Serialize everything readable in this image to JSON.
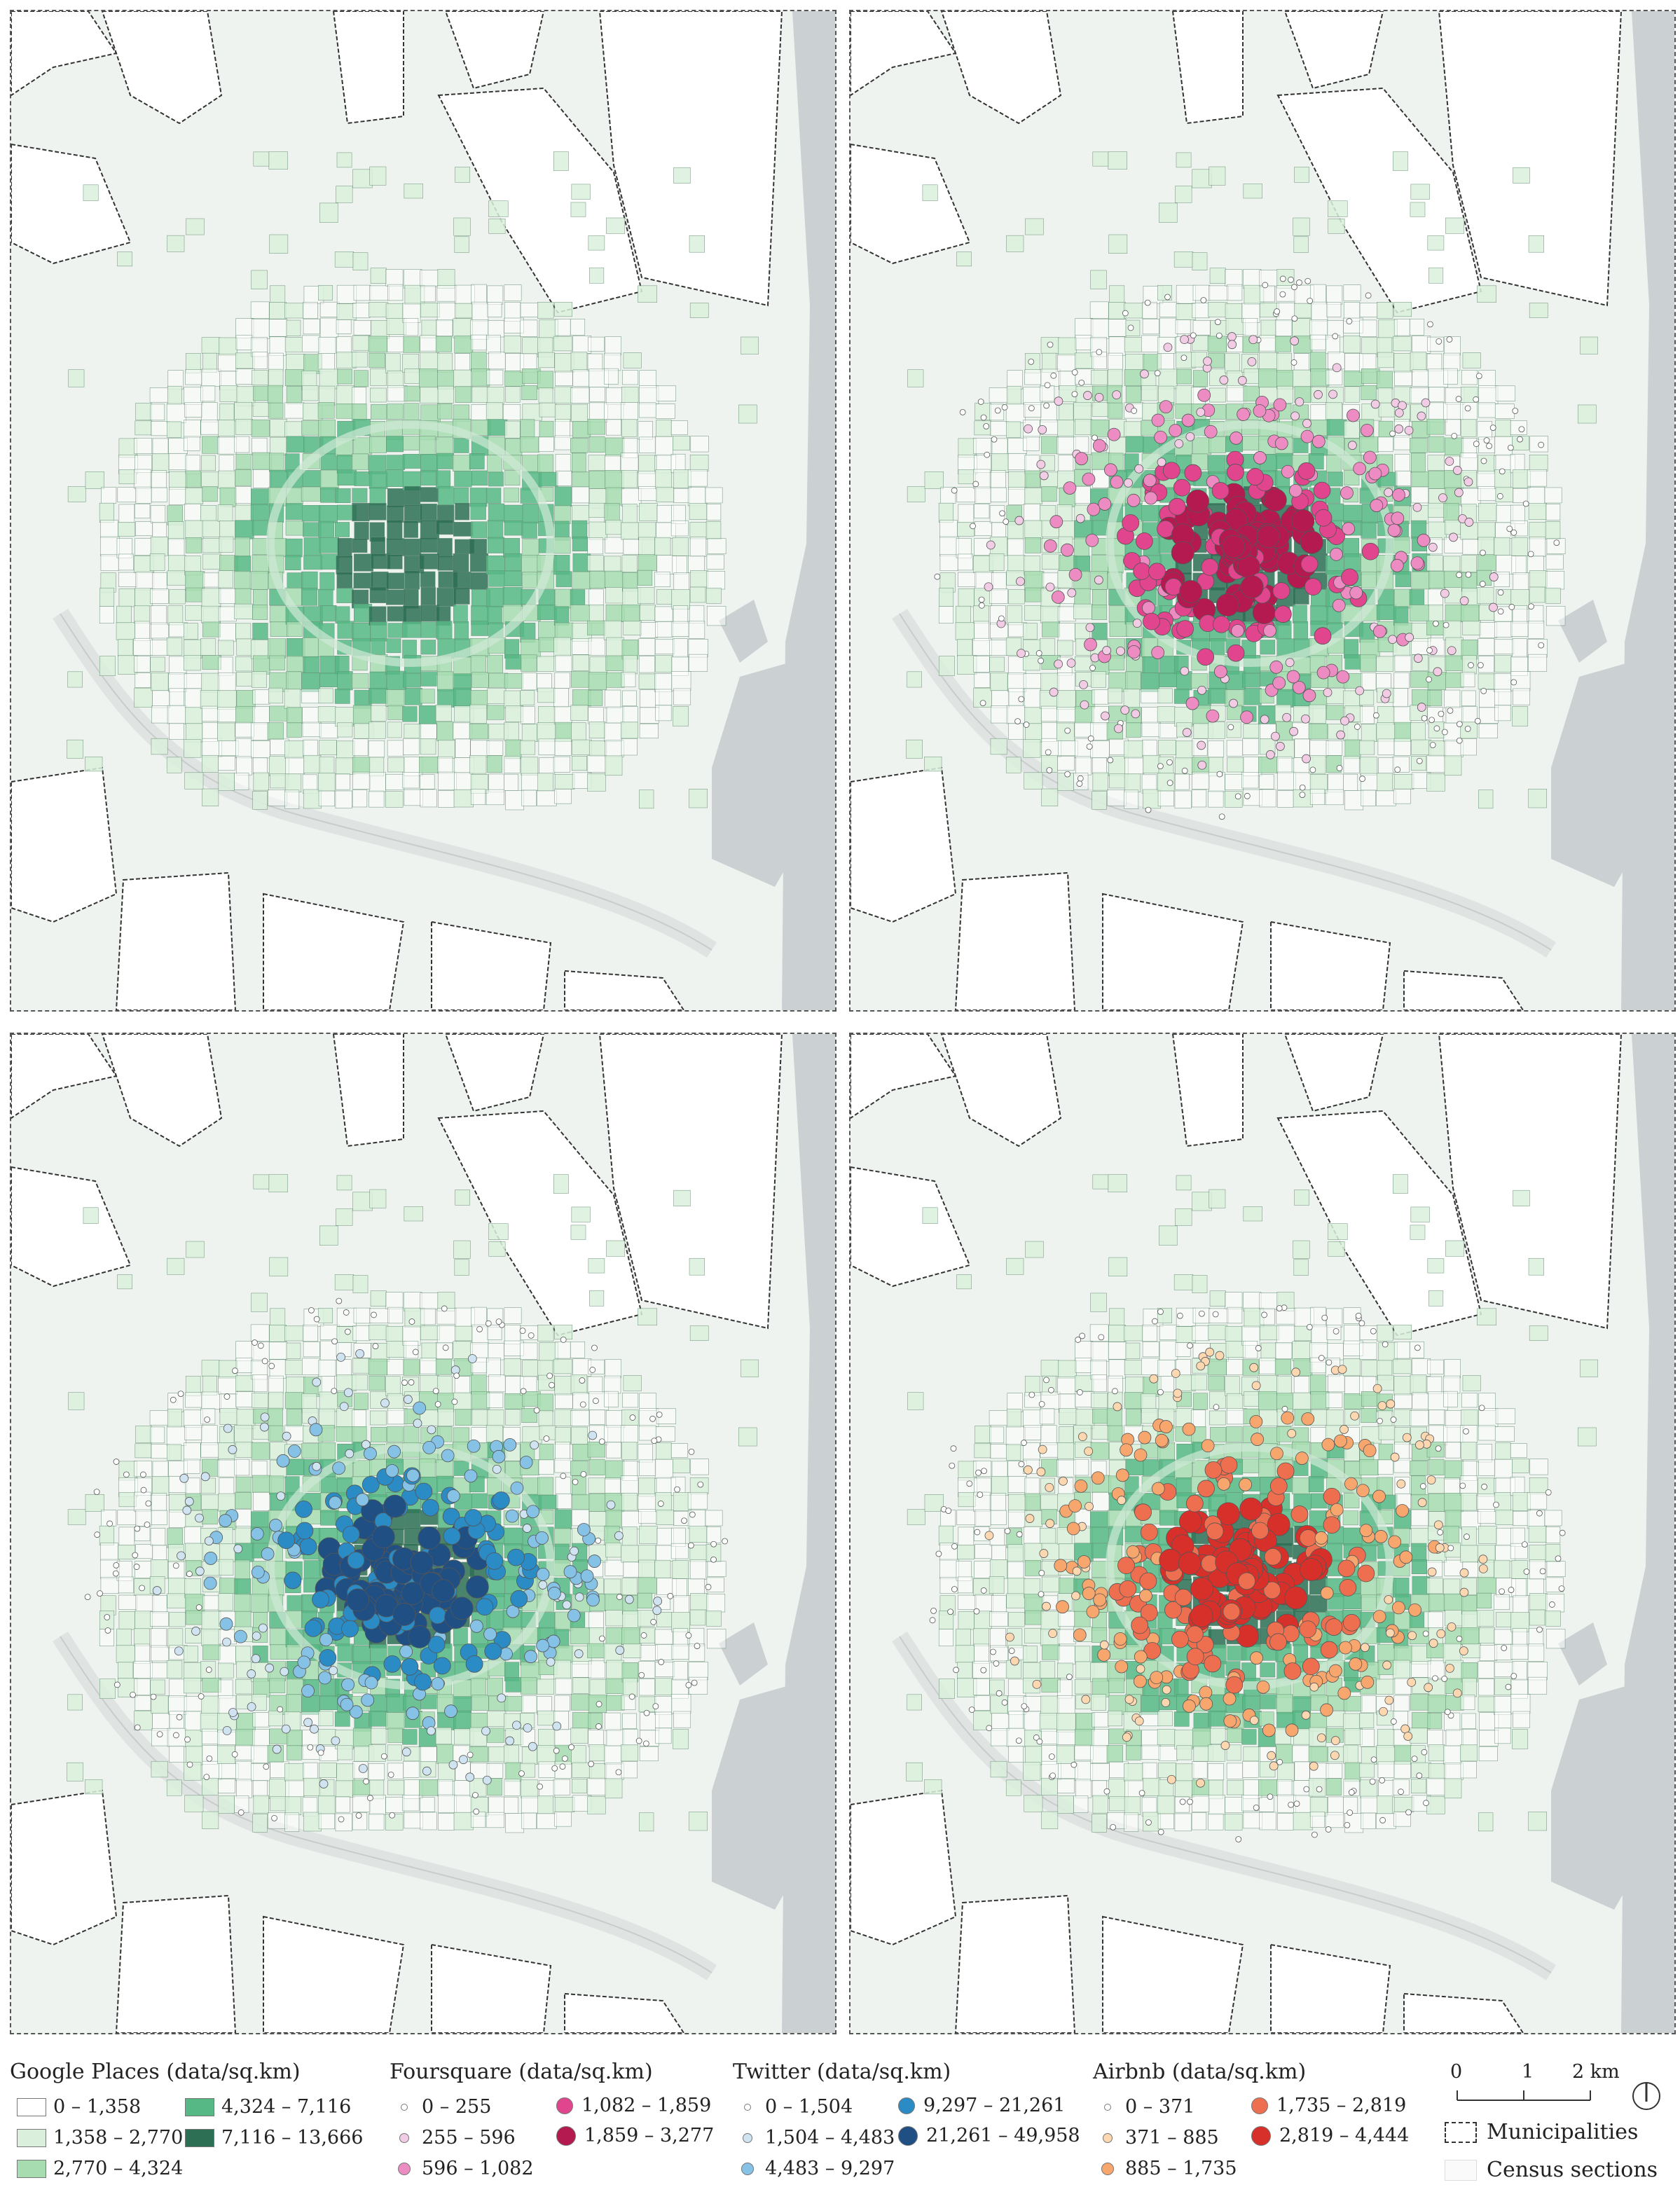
{
  "panels": [
    {
      "id": "p1",
      "overlay": "none"
    },
    {
      "id": "p2",
      "overlay": "foursquare"
    },
    {
      "id": "p3",
      "overlay": "twitter"
    },
    {
      "id": "p4",
      "overlay": "airbnb"
    }
  ],
  "colors": {
    "background": "#eef3ef",
    "sea": "#cbd1d3",
    "municipality_fill": "#ffffff",
    "google": [
      "#ffffff",
      "#dbf0dc",
      "#a7dcb0",
      "#56b885",
      "#2c6f55"
    ],
    "foursquare": [
      "#ffffff",
      "#f1cce4",
      "#ec8cc2",
      "#e0458d",
      "#b41a4f"
    ],
    "twitter": [
      "#ffffff",
      "#cfe3f0",
      "#86c2e6",
      "#2b8bc5",
      "#1f4f83"
    ],
    "airbnb": [
      "#ffffff",
      "#fcd7b0",
      "#f7a76e",
      "#ed6f4f",
      "#d7302a"
    ]
  },
  "legend": {
    "google": {
      "title": "Google Places (data/sq.km)",
      "items": [
        "0 – 1,358",
        "1,358 – 2,770",
        "2,770 – 4,324",
        "4,324 – 7,116",
        "7,116 – 13,666"
      ]
    },
    "foursquare": {
      "title": "Foursquare (data/sq.km)",
      "items": [
        "0 – 255",
        "255 – 596",
        "596 – 1,082",
        "1,082 – 1,859",
        "1,859 – 3,277"
      ]
    },
    "twitter": {
      "title": "Twitter (data/sq.km)",
      "items": [
        "0 – 1,504",
        "1,504 – 4,483",
        "4,483 – 9,297",
        "9,297 – 21,261",
        "21,261 – 49,958"
      ]
    },
    "airbnb": {
      "title": "Airbnb (data/sq.km)",
      "items": [
        "0 – 371",
        "371 – 885",
        "885 – 1,735",
        "1,735 – 2,819",
        "2,819 – 4,444"
      ]
    },
    "scale": {
      "ticks": [
        "0",
        "1",
        "2 km"
      ]
    },
    "reference": {
      "municipalities": "Municipalities",
      "census": "Census sections"
    }
  }
}
